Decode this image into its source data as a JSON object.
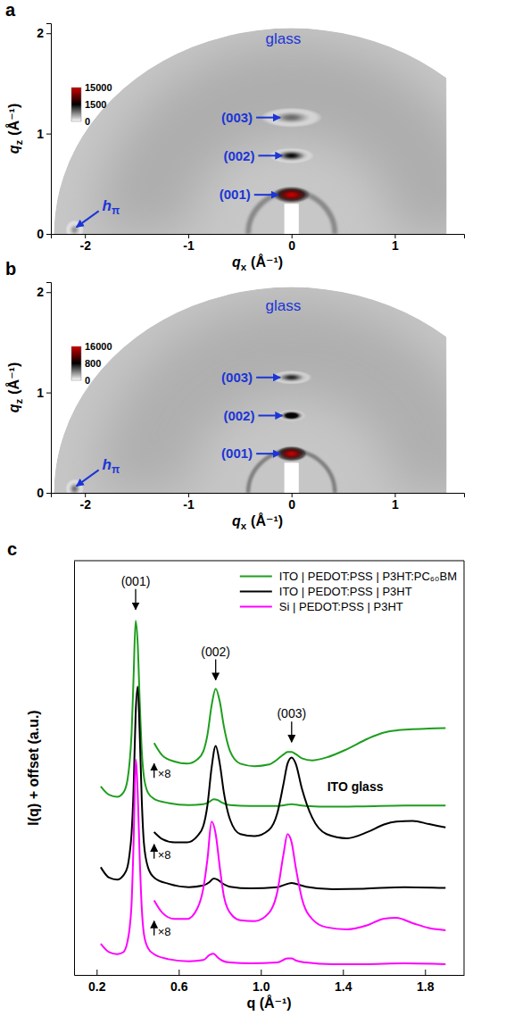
{
  "chart_data": [
    {
      "panel": "a",
      "type": "scattering_image",
      "xlabel": {
        "text": "q",
        "sub": "x",
        "unit": "(Å⁻¹)"
      },
      "ylabel": {
        "text": "q",
        "sub": "z",
        "unit": "(Å⁻¹)"
      },
      "xlim": [
        -2.33,
        1.67
      ],
      "ylim": [
        0,
        2.1
      ],
      "xticks": [
        -2,
        -1,
        0,
        1
      ],
      "yticks": [
        0,
        1,
        2
      ],
      "colorbar": {
        "range": [
          0,
          15000
        ],
        "ticks": [
          0,
          1500,
          15000
        ],
        "colors": [
          "#ffffff",
          "#000000",
          "#cc0000"
        ]
      },
      "detector": {
        "qx_min": -2.3,
        "qx_max": 1.5,
        "qz_max": 2.05,
        "background": 330
      },
      "rings": [
        {
          "q": 1.45,
          "width": 0.9,
          "intensity": 480
        },
        {
          "q": 0.42,
          "width": 0.05,
          "intensity": 700
        }
      ],
      "beamstop": {
        "qx": [
          -0.07,
          0.07
        ],
        "qz": [
          0,
          0.3
        ]
      },
      "spots": [
        {
          "qx": 0,
          "qz": 0.39,
          "sx": 0.2,
          "sz": 0.09,
          "intensity": 15000
        },
        {
          "qx": 0,
          "qz": 0.78,
          "sx": 0.22,
          "sz": 0.08,
          "intensity": 1500
        },
        {
          "qx": 0,
          "qz": 1.16,
          "sx": 0.3,
          "sz": 0.1,
          "intensity": 900
        },
        {
          "qx": -2.1,
          "qz": 0.04,
          "sx": 0.09,
          "sz": 0.1,
          "intensity": 650
        }
      ],
      "labels": [
        {
          "text": "(003)",
          "x": -0.1,
          "y": 1.16
        },
        {
          "text": "(002)",
          "x": -0.08,
          "y": 0.78
        },
        {
          "text": "(001)",
          "x": -0.12,
          "y": 0.39
        }
      ],
      "h_label": {
        "text": "h",
        "sub": "π",
        "x": -2.1,
        "y": 0.05
      },
      "texts": [
        {
          "text": "glass",
          "x": -0.08,
          "y": 1.95
        }
      ]
    },
    {
      "panel": "b",
      "type": "scattering_image",
      "xlabel": {
        "text": "q",
        "sub": "x",
        "unit": "(Å⁻¹)"
      },
      "ylabel": {
        "text": "q",
        "sub": "z",
        "unit": "(Å⁻¹)"
      },
      "xlim": [
        -2.33,
        1.67
      ],
      "ylim": [
        0,
        2.1
      ],
      "xticks": [
        -2,
        -1,
        0,
        1
      ],
      "yticks": [
        0,
        1,
        2
      ],
      "colorbar": {
        "range": [
          0,
          16000
        ],
        "ticks": [
          0,
          800,
          16000
        ],
        "colors": [
          "#ffffff",
          "#000000",
          "#cc0000"
        ]
      },
      "detector": {
        "qx_min": -2.3,
        "qx_max": 1.5,
        "qz_max": 2.05,
        "background": 180
      },
      "rings": [
        {
          "q": 1.45,
          "width": 0.9,
          "intensity": 250
        },
        {
          "q": 0.42,
          "width": 0.04,
          "intensity": 400
        }
      ],
      "beamstop": {
        "qx": [
          -0.07,
          0.07
        ],
        "qz": [
          0,
          0.3
        ]
      },
      "spots": [
        {
          "qx": 0,
          "qz": 0.39,
          "sx": 0.16,
          "sz": 0.08,
          "intensity": 16000
        },
        {
          "qx": 0,
          "qz": 0.77,
          "sx": 0.14,
          "sz": 0.06,
          "intensity": 1600
        },
        {
          "qx": 0,
          "qz": 1.15,
          "sx": 0.2,
          "sz": 0.07,
          "intensity": 700
        },
        {
          "qx": -2.1,
          "qz": 0.04,
          "sx": 0.09,
          "sz": 0.1,
          "intensity": 450
        }
      ],
      "labels": [
        {
          "text": "(003)",
          "x": -0.1,
          "y": 1.15
        },
        {
          "text": "(002)",
          "x": -0.08,
          "y": 0.77
        },
        {
          "text": "(001)",
          "x": -0.1,
          "y": 0.39
        }
      ],
      "h_label": {
        "text": "h",
        "sub": "π",
        "x": -2.1,
        "y": 0.05
      },
      "texts": [
        {
          "text": "glass",
          "x": -0.08,
          "y": 1.87
        }
      ]
    },
    {
      "panel": "c",
      "type": "line",
      "xlabel": "q (Å⁻¹)",
      "ylabel": "I(q) + offset (a.u.)",
      "xlim": [
        0.09,
        1.99
      ],
      "ylim": [
        0,
        100
      ],
      "xticks": [
        0.2,
        0.6,
        {
          "value": 1,
          "label": "1.0"
        },
        1.4,
        1.8
      ],
      "tick_labels": "x",
      "legend": "upper right",
      "series": [
        {
          "name": "ITO | PEDOT:PSS | P3HT:PC₆₀BM",
          "color": "#1e9e1e",
          "x": [
            0.22,
            0.26,
            0.3,
            0.33,
            0.35,
            0.36,
            0.37,
            0.38,
            0.39,
            0.4,
            0.41,
            0.42,
            0.43,
            0.45,
            0.48,
            0.55,
            0.65,
            0.72,
            0.75,
            0.77,
            0.79,
            0.81,
            0.85,
            0.95,
            1.08,
            1.13,
            1.15,
            1.17,
            1.22,
            1.35,
            1.5,
            1.7,
            1.9
          ],
          "values": [
            45.5,
            43.5,
            43,
            44,
            47,
            51,
            58,
            72,
            85.5,
            80,
            66,
            54,
            48,
            44,
            42.5,
            41.5,
            41,
            41.2,
            41.8,
            42.4,
            42.2,
            41.6,
            41,
            40.8,
            40.8,
            41.1,
            41.2,
            41.1,
            40.8,
            40.6,
            40.7,
            40.9,
            40.9
          ]
        },
        {
          "name": "ITO | PEDOT:PSS | P3HT",
          "color": "#000000",
          "x": [
            0.22,
            0.26,
            0.3,
            0.33,
            0.35,
            0.36,
            0.37,
            0.38,
            0.39,
            0.4,
            0.41,
            0.42,
            0.43,
            0.45,
            0.48,
            0.55,
            0.65,
            0.72,
            0.75,
            0.77,
            0.79,
            0.81,
            0.85,
            0.95,
            1.08,
            1.13,
            1.15,
            1.17,
            1.22,
            1.35,
            1.5,
            1.7,
            1.9
          ],
          "values": [
            26,
            23.5,
            23,
            24,
            26,
            29,
            34,
            45,
            63,
            69.6,
            58,
            42,
            32,
            26,
            23.5,
            22,
            21.2,
            21.6,
            22.4,
            23.3,
            23,
            22.2,
            21.3,
            20.9,
            21.2,
            22,
            22.2,
            22,
            21.3,
            20.7,
            20.8,
            21.2,
            21
          ]
        },
        {
          "name": "Si | PEDOT:PSS | P3HT",
          "color": "#ff00ff",
          "x": [
            0.22,
            0.26,
            0.3,
            0.33,
            0.35,
            0.36,
            0.37,
            0.38,
            0.39,
            0.4,
            0.41,
            0.42,
            0.43,
            0.45,
            0.48,
            0.55,
            0.65,
            0.72,
            0.75,
            0.77,
            0.79,
            0.81,
            0.85,
            0.95,
            1.08,
            1.13,
            1.15,
            1.17,
            1.22,
            1.35,
            1.5,
            1.7,
            1.9
          ],
          "values": [
            7.5,
            5.5,
            5,
            5.5,
            8,
            11,
            17,
            32,
            52,
            44,
            28,
            16,
            10,
            6.5,
            5,
            3.8,
            3.3,
            3.6,
            4.8,
            5.1,
            4.2,
            3.5,
            3,
            2.8,
            3,
            4,
            4,
            3.5,
            3,
            2.6,
            2.6,
            2.8,
            2.6
          ]
        },
        {
          "color": "#1e9e1e",
          "x": [
            0.48,
            0.52,
            0.58,
            0.64,
            0.69,
            0.72,
            0.74,
            0.76,
            0.78,
            0.8,
            0.82,
            0.85,
            0.9,
            0.97,
            1.04,
            1.08,
            1.11,
            1.13,
            1.15,
            1.17,
            1.2,
            1.25,
            1.32,
            1.42,
            1.52,
            1.6,
            1.66,
            1.74,
            1.82,
            1.9
          ],
          "values": [
            56,
            53,
            51.5,
            51,
            52,
            54,
            58,
            65,
            69.1,
            66,
            60,
            54,
            51,
            50.4,
            50.8,
            52,
            53.2,
            53.8,
            53.8,
            53.3,
            52.3,
            51.8,
            52.5,
            54.5,
            57,
            58.5,
            59,
            59.3,
            59.5,
            59.6
          ]
        },
        {
          "color": "#000000",
          "x": [
            0.48,
            0.52,
            0.58,
            0.64,
            0.69,
            0.72,
            0.74,
            0.76,
            0.78,
            0.8,
            0.82,
            0.85,
            0.9,
            0.97,
            1.04,
            1.08,
            1.11,
            1.13,
            1.15,
            1.17,
            1.2,
            1.25,
            1.32,
            1.42,
            1.52,
            1.6,
            1.66,
            1.74,
            1.82,
            1.9
          ],
          "values": [
            34.5,
            32.8,
            32,
            32,
            33.5,
            36,
            41,
            50,
            55.3,
            51,
            44,
            37.5,
            34,
            33.5,
            35,
            39,
            46,
            51,
            52.5,
            51,
            45,
            38,
            34,
            33,
            34.5,
            36.3,
            37,
            37.2,
            36.4,
            35.6
          ]
        },
        {
          "color": "#ff00ff",
          "x": [
            0.48,
            0.52,
            0.58,
            0.64,
            0.69,
            0.72,
            0.74,
            0.76,
            0.78,
            0.8,
            0.82,
            0.85,
            0.9,
            0.97,
            1.04,
            1.08,
            1.11,
            1.13,
            1.15,
            1.17,
            1.2,
            1.25,
            1.32,
            1.42,
            1.52,
            1.6,
            1.66,
            1.74,
            1.82,
            1.9
          ],
          "values": [
            18,
            15,
            13.5,
            13.5,
            16,
            21,
            28,
            37,
            34,
            26,
            19,
            15,
            13.2,
            13,
            15,
            20,
            29,
            34,
            32,
            26,
            18.5,
            13.5,
            11.5,
            11,
            12,
            13.6,
            13.8,
            12.5,
            11.3,
            10.8
          ]
        }
      ],
      "peak_labels": [
        {
          "text": "(001)",
          "x": 0.39,
          "y": 88
        },
        {
          "text": "(002)",
          "x": 0.78,
          "y": 71
        },
        {
          "text": "(003)",
          "x": 1.15,
          "y": 56
        }
      ],
      "scale_labels": [
        {
          "text": "×8",
          "x": 0.48,
          "y": 51
        },
        {
          "text": "×8",
          "x": 0.48,
          "y": 31.5
        },
        {
          "text": "×8",
          "x": 0.48,
          "y": 13
        }
      ],
      "texts": [
        {
          "text": "ITO glass",
          "x": 1.46,
          "y": 44.5
        }
      ]
    }
  ]
}
